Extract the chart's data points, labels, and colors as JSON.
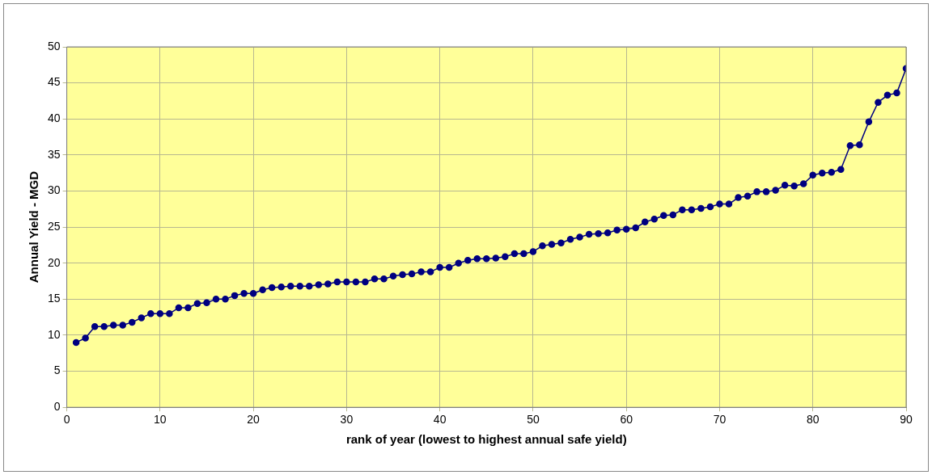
{
  "chart_data": {
    "type": "line",
    "xlabel": "rank of year (lowest to highest annual safe yield)",
    "ylabel": "Annual Yield - MGD",
    "x": [
      1,
      2,
      3,
      4,
      5,
      6,
      7,
      8,
      9,
      10,
      11,
      12,
      13,
      14,
      15,
      16,
      17,
      18,
      19,
      20,
      21,
      22,
      23,
      24,
      25,
      26,
      27,
      28,
      29,
      30,
      31,
      32,
      33,
      34,
      35,
      36,
      37,
      38,
      39,
      40,
      41,
      42,
      43,
      44,
      45,
      46,
      47,
      48,
      49,
      50,
      51,
      52,
      53,
      54,
      55,
      56,
      57,
      58,
      59,
      60,
      61,
      62,
      63,
      64,
      65,
      66,
      67,
      68,
      69,
      70,
      71,
      72,
      73,
      74,
      75,
      76,
      77,
      78,
      79,
      80,
      81,
      82,
      83,
      84,
      85,
      86,
      87,
      88,
      89,
      90
    ],
    "series": [
      {
        "color": "#000080",
        "values": [
          9.0,
          9.6,
          11.2,
          11.2,
          11.4,
          11.4,
          11.8,
          12.4,
          13.0,
          13.0,
          13.0,
          13.8,
          13.8,
          14.4,
          14.5,
          15.0,
          15.0,
          15.5,
          15.8,
          15.8,
          16.3,
          16.6,
          16.7,
          16.8,
          16.8,
          16.8,
          17.0,
          17.1,
          17.4,
          17.4,
          17.4,
          17.4,
          17.8,
          17.8,
          18.2,
          18.4,
          18.5,
          18.8,
          18.8,
          19.4,
          19.4,
          20.0,
          20.4,
          20.6,
          20.6,
          20.7,
          20.9,
          21.3,
          21.3,
          21.6,
          22.4,
          22.6,
          22.8,
          23.3,
          23.6,
          24.0,
          24.1,
          24.2,
          24.6,
          24.7,
          24.9,
          25.7,
          26.1,
          26.6,
          26.7,
          27.4,
          27.4,
          27.6,
          27.8,
          28.2,
          28.2,
          29.1,
          29.3,
          29.9,
          29.9,
          30.1,
          30.8,
          30.7,
          31.0,
          32.2,
          32.5,
          32.6,
          33.0,
          36.3,
          36.4,
          39.6,
          42.3,
          43.3,
          43.6,
          47.0
        ]
      }
    ],
    "xlim": [
      0,
      90
    ],
    "xticks": [
      0,
      10,
      20,
      30,
      40,
      50,
      60,
      70,
      80,
      90
    ],
    "ylim": [
      0,
      50
    ],
    "yticks": [
      0,
      5,
      10,
      15,
      20,
      25,
      30,
      35,
      40,
      45,
      50
    ],
    "grid": true,
    "legend": false,
    "marker": "circle",
    "line_style": "solid"
  }
}
